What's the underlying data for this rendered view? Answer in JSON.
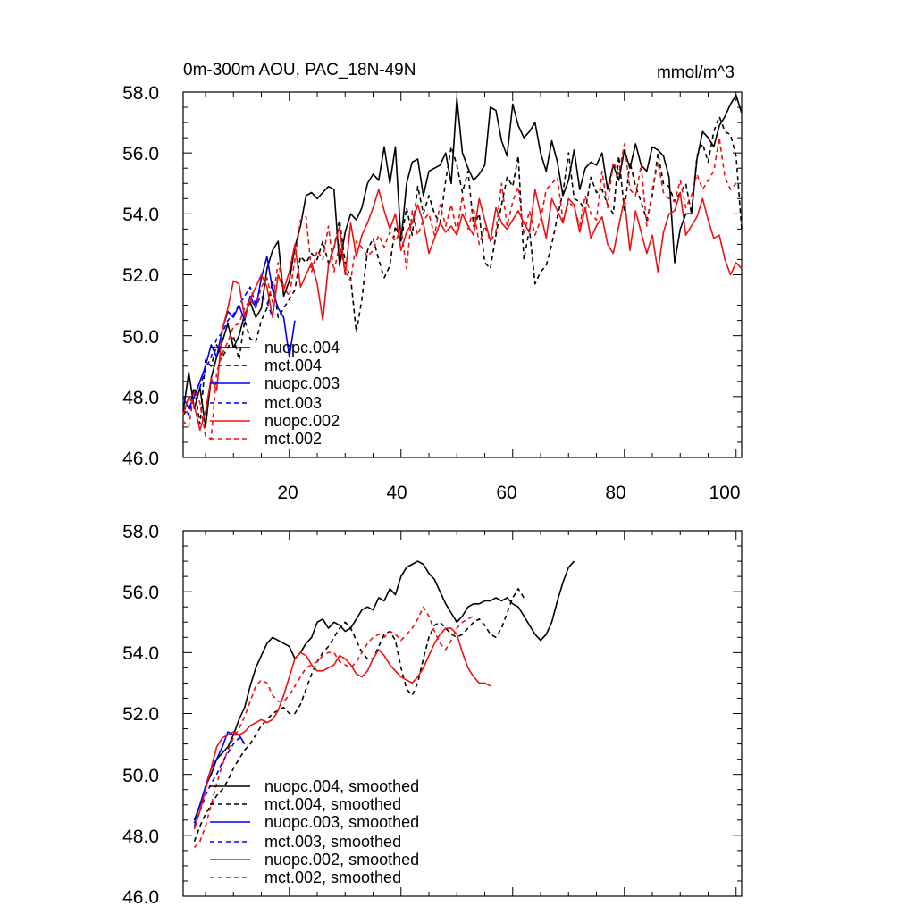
{
  "figure": {
    "title_left": "0m-300m AOU, PAC_18N-49N",
    "title_right": "mmol/m^3"
  },
  "colors": {
    "black": "#000000",
    "blue": "#0000ee",
    "red": "#ee1111"
  },
  "chart_data": [
    {
      "type": "line",
      "panel": "top",
      "title": "0m-300m AOU, PAC_18N-49N",
      "units": "mmol/m^3",
      "xlim": [
        1,
        101
      ],
      "ylim": [
        46.0,
        58.0
      ],
      "x_ticks": [
        20,
        40,
        60,
        80,
        100
      ],
      "y_ticks": [
        "46.0",
        "48.0",
        "50.0",
        "52.0",
        "54.0",
        "56.0",
        "58.0"
      ],
      "legend_position": "lower-left",
      "series": [
        {
          "name": "nuopc.004",
          "color": "#000000",
          "dash": "solid",
          "x0": 1,
          "values": [
            47.5,
            48.8,
            47.6,
            48.3,
            47.0,
            48.6,
            49.3,
            49.8,
            50.4,
            49.6,
            50.0,
            50.7,
            51.1,
            50.6,
            50.9,
            52.2,
            52.8,
            53.1,
            51.3,
            51.8,
            52.9,
            53.6,
            54.6,
            54.7,
            54.5,
            54.7,
            54.9,
            54.8,
            52.3,
            53.4,
            54.0,
            53.8,
            54.2,
            55.0,
            55.3,
            55.1,
            56.2,
            55.0,
            56.2,
            53.1,
            55.0,
            55.7,
            55.8,
            54.6,
            55.4,
            55.5,
            55.6,
            56.0,
            55.0,
            57.8,
            56.0,
            55.5,
            55.1,
            55.3,
            55.6,
            57.5,
            57.4,
            56.4,
            55.9,
            57.6,
            56.9,
            56.5,
            56.7,
            57.0,
            56.0,
            55.4,
            56.4,
            55.7,
            54.6,
            55.1,
            56.1,
            54.8,
            55.5,
            55.7,
            55.6,
            56.0,
            54.8,
            55.6,
            55.1,
            56.1,
            55.5,
            56.3,
            55.6,
            55.4,
            56.2,
            56.1,
            55.9,
            55.2,
            52.4,
            53.5,
            54.0,
            54.0,
            55.8,
            56.7,
            56.5,
            56.2,
            56.9,
            57.2,
            57.6,
            57.9,
            57.3
          ]
        },
        {
          "name": "mct.004",
          "color": "#000000",
          "dash": "dashed",
          "x0": 1,
          "values": [
            47.4,
            47.6,
            48.3,
            47.1,
            49.2,
            49.0,
            49.7,
            49.3,
            49.6,
            50.0,
            49.2,
            50.5,
            49.9,
            49.8,
            50.5,
            50.9,
            51.8,
            50.6,
            50.9,
            51.2,
            51.5,
            52.6,
            52.4,
            52.7,
            52.5,
            53.1,
            52.4,
            52.9,
            53.8,
            52.4,
            51.9,
            50.1,
            51.2,
            52.8,
            53.2,
            52.5,
            51.9,
            52.3,
            53.6,
            53.1,
            54.2,
            53.3,
            54.9,
            54.0,
            54.6,
            54.0,
            53.7,
            55.1,
            56.2,
            55.6,
            54.7,
            55.4,
            53.6,
            54.0,
            52.4,
            52.2,
            53.3,
            54.3,
            55.2,
            54.9,
            55.9,
            52.5,
            53.5,
            51.7,
            52.1,
            52.3,
            53.0,
            53.9,
            54.7,
            56.0,
            54.5,
            54.4,
            54.1,
            55.2,
            54.7,
            54.8,
            54.3,
            54.0,
            55.9,
            54.1,
            55.7,
            54.9,
            54.4,
            53.8,
            54.6,
            56.0,
            55.0,
            54.9,
            54.4,
            54.7,
            55.0,
            54.0,
            55.9,
            56.3,
            55.7,
            56.7,
            57.2,
            56.7,
            56.6,
            55.9,
            53.5
          ]
        },
        {
          "name": "nuopc.003",
          "color": "#0000ee",
          "dash": "solid",
          "x0": 1,
          "values": [
            48.0,
            47.6,
            48.0,
            48.5,
            49.0,
            49.7,
            49.3,
            50.2,
            50.8,
            50.6,
            51.0,
            50.5,
            51.3,
            50.9,
            51.9,
            52.6,
            51.5,
            50.9,
            50.6,
            49.3,
            50.5
          ]
        },
        {
          "name": "mct.003",
          "color": "#0000ee",
          "dash": "dashed",
          "x0": 1,
          "values": [
            47.7,
            47.4,
            48.1,
            48.3,
            48.9,
            49.3,
            49.9,
            50.1,
            50.5,
            50.7,
            51.0,
            51.3,
            51.6,
            51.0,
            51.3,
            51.1,
            50.6
          ]
        },
        {
          "name": "nuopc.002",
          "color": "#ee1111",
          "dash": "solid",
          "x0": 1,
          "values": [
            47.4,
            48.0,
            47.7,
            46.9,
            47.5,
            48.6,
            48.2,
            50.2,
            50.9,
            51.8,
            51.7,
            50.6,
            51.2,
            51.6,
            52.0,
            51.6,
            50.6,
            52.0,
            51.5,
            52.1,
            53.0,
            51.6,
            52.0,
            52.4,
            51.7,
            50.5,
            52.3,
            52.9,
            53.6,
            52.0,
            53.7,
            52.6,
            53.3,
            53.7,
            54.2,
            54.8,
            54.1,
            53.5,
            54.0,
            52.8,
            53.4,
            53.7,
            54.3,
            53.7,
            52.7,
            53.2,
            53.7,
            53.4,
            53.6,
            53.3,
            54.0,
            53.6,
            53.3,
            54.5,
            53.8,
            53.1,
            54.2,
            53.7,
            53.5,
            53.8,
            54.1,
            53.7,
            53.4,
            54.8,
            54.0,
            53.2,
            54.5,
            54.1,
            53.7,
            54.5,
            54.3,
            53.4,
            54.2,
            53.2,
            53.6,
            53.9,
            53.0,
            52.7,
            53.6,
            54.5,
            52.8,
            54.1,
            53.4,
            52.7,
            53.3,
            52.1,
            53.4,
            54.0,
            54.1,
            54.7,
            53.3,
            53.6,
            53.9,
            54.5,
            53.8,
            53.2,
            53.3,
            52.5,
            52.0,
            52.4,
            52.2
          ]
        },
        {
          "name": "mct.002",
          "color": "#ee1111",
          "dash": "dashed",
          "x0": 1,
          "values": [
            47.2,
            47.0,
            48.2,
            47.8,
            46.7,
            46.6,
            48.8,
            49.4,
            49.8,
            50.3,
            50.4,
            50.9,
            51.2,
            50.9,
            51.6,
            51.9,
            51.1,
            52.4,
            51.6,
            51.3,
            52.5,
            53.8,
            53.9,
            52.1,
            52.8,
            52.5,
            53.6,
            52.1,
            53.0,
            52.1,
            51.8,
            53.1,
            52.9,
            52.6,
            52.8,
            53.3,
            52.9,
            53.4,
            53.1,
            53.5,
            52.2,
            54.1,
            53.3,
            53.8,
            54.0,
            53.3,
            54.3,
            53.6,
            54.3,
            53.4,
            54.6,
            53.5,
            54.2,
            53.0,
            53.6,
            53.1,
            53.4,
            55.0,
            53.6,
            54.4,
            54.9,
            53.3,
            54.1,
            53.3,
            53.8,
            54.8,
            55.0,
            55.2,
            53.8,
            54.4,
            54.2,
            53.6,
            54.6,
            54.0,
            53.8,
            55.4,
            54.2,
            55.7,
            55.3,
            56.3,
            54.8,
            54.6,
            55.6,
            53.6,
            54.8,
            55.7,
            54.7,
            54.5,
            54.4,
            55.1,
            54.2,
            54.6,
            55.3,
            54.8,
            55.1,
            55.4,
            56.5,
            55.2,
            54.8,
            55.0,
            55.0
          ]
        }
      ]
    },
    {
      "type": "line",
      "panel": "bottom",
      "xlim": [
        1,
        101
      ],
      "ylim": [
        46.0,
        58.0
      ],
      "y_ticks": [
        "46.0",
        "48.0",
        "50.0",
        "52.0",
        "54.0",
        "56.0",
        "58.0"
      ],
      "legend_position": "lower-left",
      "series": [
        {
          "name": "nuopc.004, smoothed",
          "color": "#000000",
          "dash": "solid",
          "x0": 3,
          "values": [
            48.5,
            49.0,
            49.6,
            50.0,
            50.5,
            50.7,
            50.9,
            51.3,
            51.8,
            52.2,
            52.9,
            53.5,
            53.9,
            54.3,
            54.5,
            54.4,
            54.3,
            54.2,
            53.8,
            54.0,
            54.3,
            54.5,
            55.0,
            55.1,
            54.8,
            55.0,
            54.9,
            54.7,
            54.8,
            55.1,
            55.4,
            55.5,
            55.4,
            55.8,
            55.7,
            56.1,
            55.9,
            56.5,
            56.8,
            56.9,
            57.0,
            56.9,
            56.6,
            56.4,
            56.0,
            55.6,
            55.3,
            55.0,
            55.2,
            55.5,
            55.6,
            55.6,
            55.7,
            55.7,
            55.8,
            55.7,
            55.8,
            55.6,
            55.5,
            55.2,
            54.9,
            54.6,
            54.4,
            54.6,
            55.0,
            55.7,
            56.3,
            56.8,
            57.0
          ]
        },
        {
          "name": "mct.004, smoothed",
          "color": "#000000",
          "dash": "dashed",
          "x0": 3,
          "values": [
            47.8,
            48.3,
            48.7,
            49.0,
            49.3,
            49.5,
            49.8,
            50.2,
            50.5,
            50.8,
            51.0,
            51.3,
            51.6,
            51.8,
            52.0,
            52.1,
            52.2,
            52.0,
            52.0,
            52.3,
            52.8,
            53.3,
            53.7,
            54.0,
            54.2,
            54.5,
            54.8,
            55.0,
            54.8,
            54.4,
            54.0,
            53.8,
            53.8,
            54.2,
            54.6,
            54.7,
            54.4,
            53.5,
            52.8,
            52.6,
            53.0,
            53.8,
            54.5,
            54.9,
            55.0,
            54.8,
            54.6,
            54.5,
            54.6,
            54.8,
            55.0,
            55.1,
            54.9,
            54.6,
            54.5,
            54.8,
            55.3,
            55.8,
            56.1,
            55.8
          ]
        },
        {
          "name": "nuopc.003, smoothed",
          "color": "#0000ee",
          "dash": "solid",
          "x0": 3,
          "values": [
            48.4,
            49.0,
            49.6,
            50.2,
            50.5,
            50.9,
            51.4,
            51.3,
            51.3,
            51.0
          ]
        },
        {
          "name": "mct.003, smoothed",
          "color": "#0000ee",
          "dash": "dashed",
          "x0": 3,
          "values": [
            48.3,
            48.8,
            49.3,
            49.7,
            50.0,
            50.4,
            50.7,
            51.0,
            51.2,
            51.0
          ]
        },
        {
          "name": "nuopc.002, smoothed",
          "color": "#ee1111",
          "dash": "solid",
          "x0": 3,
          "values": [
            48.2,
            48.8,
            49.5,
            50.2,
            50.9,
            51.2,
            51.3,
            51.4,
            51.3,
            51.4,
            51.6,
            51.7,
            51.8,
            51.7,
            51.8,
            52.1,
            52.6,
            53.2,
            53.8,
            54.0,
            53.9,
            53.6,
            53.4,
            53.4,
            53.5,
            53.6,
            53.9,
            53.8,
            53.6,
            53.3,
            53.2,
            53.4,
            53.8,
            54.1,
            53.9,
            53.6,
            53.4,
            53.2,
            53.1,
            53.0,
            53.2,
            53.5,
            53.9,
            54.3,
            54.6,
            54.8,
            54.8,
            54.6,
            54.0,
            53.5,
            53.2,
            53.0,
            53.0,
            52.9
          ]
        },
        {
          "name": "mct.002, smoothed",
          "color": "#ee1111",
          "dash": "dashed",
          "x0": 3,
          "values": [
            47.6,
            47.8,
            48.3,
            49.0,
            49.7,
            50.3,
            50.8,
            51.2,
            51.5,
            51.9,
            52.4,
            52.9,
            53.1,
            53.0,
            52.6,
            52.4,
            52.4,
            52.6,
            52.9,
            53.2,
            53.5,
            53.6,
            53.7,
            53.9,
            54.0,
            54.0,
            53.7,
            53.6,
            53.5,
            53.7,
            54.0,
            54.3,
            54.5,
            54.6,
            54.5,
            54.7,
            54.6,
            54.4,
            54.6,
            54.8,
            55.1,
            55.5,
            55.2,
            54.7,
            54.3,
            54.1,
            54.4,
            54.8,
            55.0,
            55.1,
            55.2
          ]
        }
      ]
    }
  ],
  "axis_labels": {
    "top_x_ticks": [
      "20",
      "40",
      "60",
      "80",
      "100"
    ],
    "top_y_ticks": [
      "46.0",
      "48.0",
      "50.0",
      "52.0",
      "54.0",
      "56.0",
      "58.0"
    ],
    "bottom_y_ticks": [
      "46.0",
      "48.0",
      "50.0",
      "52.0",
      "54.0",
      "56.0",
      "58.0"
    ]
  },
  "legends": {
    "top": [
      "nuopc.004",
      "mct.004",
      "nuopc.003",
      "mct.003",
      "nuopc.002",
      "mct.002"
    ],
    "bottom": [
      "nuopc.004, smoothed",
      "mct.004, smoothed",
      "nuopc.003, smoothed",
      "mct.003, smoothed",
      "nuopc.002, smoothed",
      "mct.002, smoothed"
    ]
  }
}
